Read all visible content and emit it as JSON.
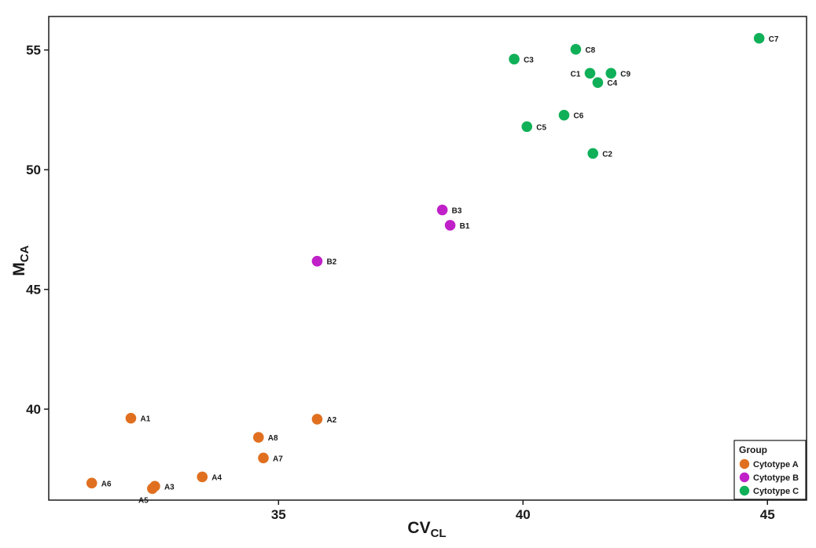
{
  "chart_data": {
    "type": "scatter",
    "xlabel": "CV",
    "xlabel_sub": "CL",
    "ylabel": "M",
    "ylabel_sub": "CA",
    "xlim": [
      30.3,
      45.8
    ],
    "ylim": [
      36.2,
      56.4
    ],
    "xticks": [
      35,
      40,
      45
    ],
    "yticks": [
      40,
      45,
      50,
      55
    ],
    "grid": false,
    "legend": {
      "title": "Group",
      "position": "bottom-right",
      "entries": [
        {
          "label": "Cytotype A",
          "color": "#E07020"
        },
        {
          "label": "Cytotype B",
          "color": "#C020C8"
        },
        {
          "label": "Cytotype C",
          "color": "#10B058"
        }
      ]
    },
    "series": [
      {
        "name": "Cytotype A",
        "color": "#E07020",
        "points": [
          {
            "label": "A1",
            "x": 31.98,
            "y": 39.62,
            "label_pos": "right"
          },
          {
            "label": "A2",
            "x": 35.79,
            "y": 39.58,
            "label_pos": "right"
          },
          {
            "label": "A3",
            "x": 32.47,
            "y": 36.78,
            "label_pos": "right"
          },
          {
            "label": "A4",
            "x": 33.44,
            "y": 37.17,
            "label_pos": "right"
          },
          {
            "label": "A5",
            "x": 32.42,
            "y": 36.68,
            "label_pos": "below-left"
          },
          {
            "label": "A6",
            "x": 31.18,
            "y": 36.91,
            "label_pos": "right"
          },
          {
            "label": "A7",
            "x": 34.69,
            "y": 37.96,
            "label_pos": "right"
          },
          {
            "label": "A8",
            "x": 34.59,
            "y": 38.82,
            "label_pos": "right"
          }
        ]
      },
      {
        "name": "Cytotype B",
        "color": "#C020C8",
        "points": [
          {
            "label": "B1",
            "x": 38.51,
            "y": 47.68,
            "label_pos": "right"
          },
          {
            "label": "B2",
            "x": 35.79,
            "y": 46.18,
            "label_pos": "right"
          },
          {
            "label": "B3",
            "x": 38.35,
            "y": 48.32,
            "label_pos": "right"
          }
        ]
      },
      {
        "name": "Cytotype C",
        "color": "#10B058",
        "points": [
          {
            "label": "C1",
            "x": 41.37,
            "y": 54.03,
            "label_pos": "left"
          },
          {
            "label": "C2",
            "x": 41.43,
            "y": 50.68,
            "label_pos": "right"
          },
          {
            "label": "C3",
            "x": 39.82,
            "y": 54.62,
            "label_pos": "right"
          },
          {
            "label": "C4",
            "x": 41.53,
            "y": 53.64,
            "label_pos": "right"
          },
          {
            "label": "C5",
            "x": 40.08,
            "y": 51.8,
            "label_pos": "right"
          },
          {
            "label": "C6",
            "x": 40.84,
            "y": 52.28,
            "label_pos": "right"
          },
          {
            "label": "C7",
            "x": 44.83,
            "y": 55.49,
            "label_pos": "right"
          },
          {
            "label": "C8",
            "x": 41.08,
            "y": 55.03,
            "label_pos": "right"
          },
          {
            "label": "C9",
            "x": 41.8,
            "y": 54.03,
            "label_pos": "right"
          }
        ]
      }
    ]
  }
}
